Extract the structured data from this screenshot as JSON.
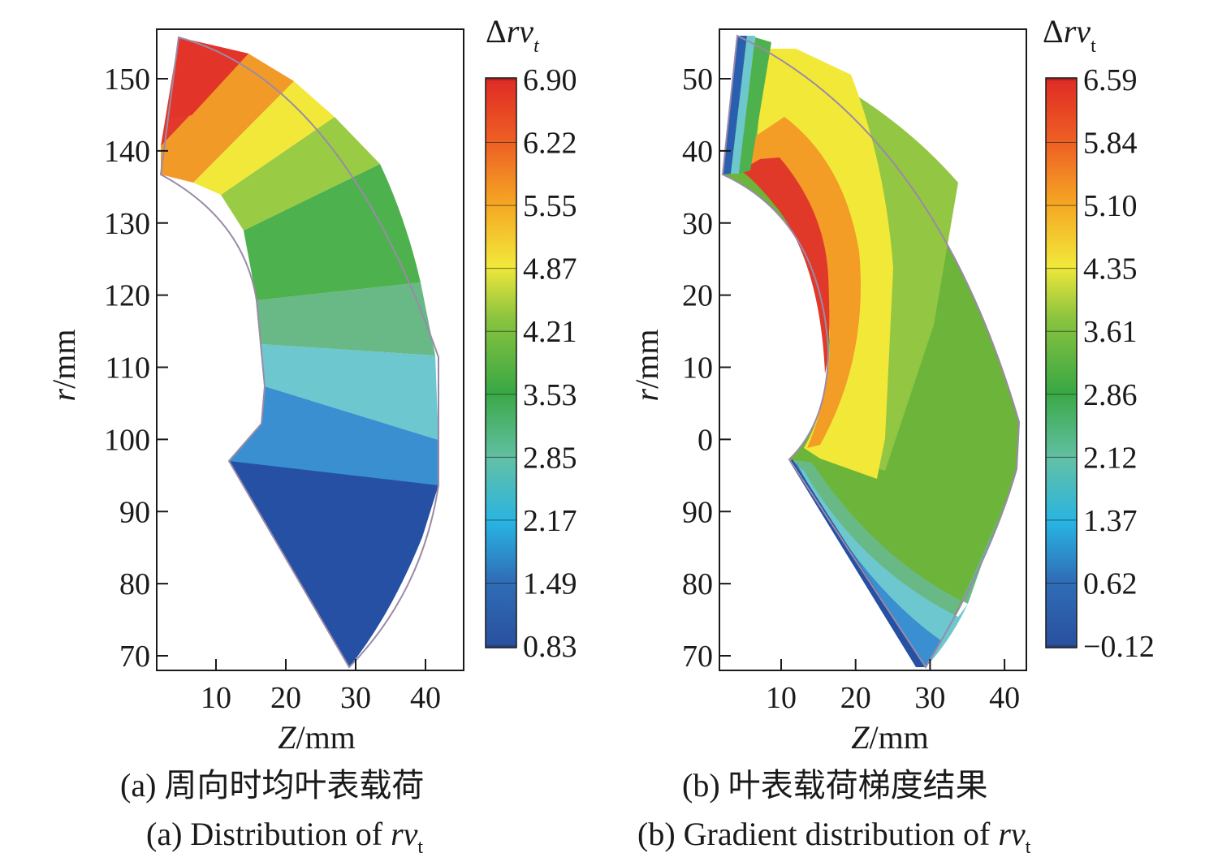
{
  "chart_data": [
    {
      "type": "heatmap",
      "panel": "a",
      "caption_cn": "(a) 周向时均叶表载荷",
      "caption_en_prefix": "(a) Distribution of ",
      "caption_en_symbol": "rv",
      "caption_en_sub": "t",
      "xlabel": "Z/mm",
      "ylabel": "r/mm",
      "x_ticks": [
        10,
        20,
        30,
        40
      ],
      "y_ticks": [
        "150",
        "140",
        "130",
        "120",
        "110",
        "100",
        "90",
        "80",
        "70"
      ],
      "colorbar_title_symbol": "Δrv",
      "colorbar_title_sub": "t",
      "colorbar_ticks": [
        "6.90",
        "6.22",
        "5.55",
        "4.87",
        "4.21",
        "3.53",
        "2.85",
        "2.17",
        "1.49",
        "0.83"
      ],
      "colorbar_range": [
        0.83,
        6.9
      ],
      "value_field": "Δrv_t contour bands over blade surface (meridional Z–r plane)"
    },
    {
      "type": "heatmap",
      "panel": "b",
      "caption_cn": "(b) 叶表载荷梯度结果",
      "caption_en_prefix": "(b) Gradient distribution of ",
      "caption_en_symbol": "rv",
      "caption_en_sub": "t",
      "xlabel": "Z/mm",
      "ylabel": "r/mm",
      "x_ticks": [
        10,
        20,
        30,
        40
      ],
      "y_ticks": [
        "50",
        "40",
        "30",
        "20",
        "10",
        "0",
        "90",
        "80",
        "70"
      ],
      "colorbar_title_symbol": "Δrv",
      "colorbar_title_sub": "t",
      "colorbar_ticks": [
        "6.59",
        "5.84",
        "5.10",
        "4.35",
        "3.61",
        "2.86",
        "2.12",
        "1.37",
        "0.62",
        "−0.12"
      ],
      "colorbar_range": [
        -0.12,
        6.59
      ],
      "value_field": "Gradient of Δrv_t contour bands over blade surface"
    }
  ]
}
